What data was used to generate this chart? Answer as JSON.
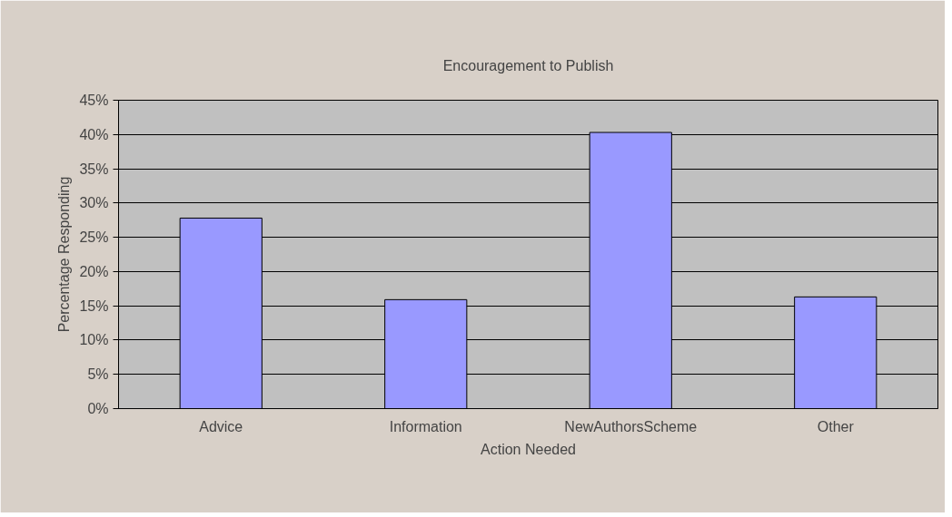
{
  "chart_data": {
    "type": "bar",
    "title": "Encouragement to Publish",
    "xlabel": "Action Needed",
    "ylabel": "Percentage Responding",
    "categories": [
      "Advice",
      "Information",
      "NewAuthorsScheme",
      "Other"
    ],
    "values": [
      27.8,
      15.9,
      40.3,
      16.3
    ],
    "color": "#9999ff",
    "ylim": [
      0,
      45
    ],
    "yticks": [
      {
        "value": 0,
        "label": "0%"
      },
      {
        "value": 5,
        "label": "5%"
      },
      {
        "value": 10,
        "label": "10%"
      },
      {
        "value": 15,
        "label": "15%"
      },
      {
        "value": 20,
        "label": "20%"
      },
      {
        "value": 25,
        "label": "25%"
      },
      {
        "value": 30,
        "label": "30%"
      },
      {
        "value": 35,
        "label": "35%"
      },
      {
        "value": 40,
        "label": "40%"
      },
      {
        "value": 45,
        "label": "45%"
      }
    ],
    "grid": "y"
  }
}
